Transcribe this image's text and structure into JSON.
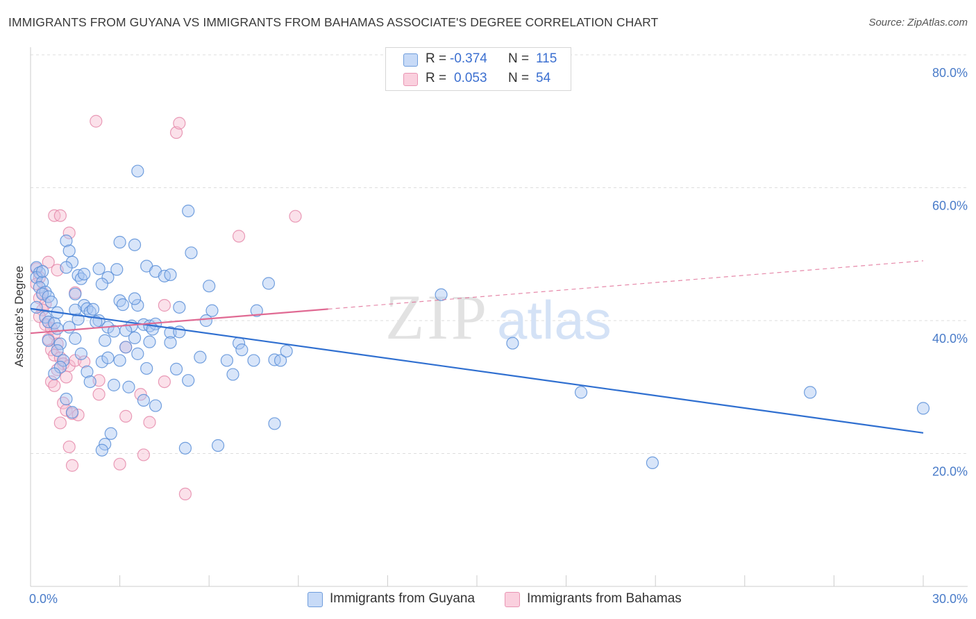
{
  "title": "IMMIGRANTS FROM GUYANA VS IMMIGRANTS FROM BAHAMAS ASSOCIATE'S DEGREE CORRELATION CHART",
  "source": "Source: ZipAtlas.com",
  "watermark": {
    "zip": "ZIP",
    "atlas": "atlas"
  },
  "colors": {
    "guyana_fill": "#a9c6f2",
    "guyana_stroke": "#5b8fd8",
    "guyana_line": "#2f6fd0",
    "bahamas_fill": "#f7bcd0",
    "bahamas_stroke": "#e58aaa",
    "bahamas_line": "#e06a93",
    "grid": "#dddddd",
    "tick_text": "#4a7cc9"
  },
  "legend_top": [
    {
      "series": "guyana",
      "r_label": "R =",
      "r_value": "-0.374",
      "n_label": "N =",
      "n_value": "115"
    },
    {
      "series": "bahamas",
      "r_label": "R =",
      "r_value": "0.053",
      "n_label": "N =",
      "n_value": "54"
    }
  ],
  "chart_data": {
    "type": "scatter",
    "title": "IMMIGRANTS FROM GUYANA VS IMMIGRANTS FROM BAHAMAS ASSOCIATE'S DEGREE CORRELATION CHART",
    "xlabel": "",
    "ylabel": "Associate's Degree",
    "xlim": [
      0,
      30
    ],
    "ylim": [
      0,
      80
    ],
    "x_tick_labels": [
      "0.0%",
      "30.0%"
    ],
    "y_ticks": [
      20,
      40,
      60,
      80
    ],
    "y_tick_labels": [
      "20.0%",
      "40.0%",
      "60.0%",
      "80.0%"
    ],
    "x_minor_ticks": [
      3,
      6,
      9,
      12,
      15,
      18,
      21,
      24,
      27,
      30
    ],
    "grid": true,
    "legend_position": "bottom",
    "series": [
      {
        "name": "Immigrants from Guyana",
        "key": "guyana",
        "R": -0.374,
        "N": 115,
        "trend": {
          "x": [
            0,
            30
          ],
          "y": [
            41.8,
            23.1
          ],
          "dashed_from": null
        },
        "points": [
          [
            0.2,
            48.0
          ],
          [
            0.3,
            47.2
          ],
          [
            0.2,
            46.5
          ],
          [
            0.4,
            45.8
          ],
          [
            0.3,
            45.0
          ],
          [
            0.5,
            44.3
          ],
          [
            0.4,
            44.0
          ],
          [
            0.6,
            43.6
          ],
          [
            0.7,
            42.8
          ],
          [
            0.2,
            42.0
          ],
          [
            0.5,
            40.5
          ],
          [
            0.6,
            39.8
          ],
          [
            0.8,
            39.6
          ],
          [
            0.9,
            38.8
          ],
          [
            0.6,
            37.0
          ],
          [
            1.0,
            36.5
          ],
          [
            0.9,
            35.5
          ],
          [
            1.1,
            34.0
          ],
          [
            1.0,
            33.0
          ],
          [
            0.8,
            32.0
          ],
          [
            1.2,
            52.0
          ],
          [
            1.3,
            50.5
          ],
          [
            1.4,
            48.8
          ],
          [
            1.2,
            48.0
          ],
          [
            1.6,
            46.8
          ],
          [
            1.7,
            46.3
          ],
          [
            1.5,
            44.0
          ],
          [
            1.8,
            42.3
          ],
          [
            1.9,
            41.8
          ],
          [
            2.0,
            41.3
          ],
          [
            1.6,
            40.2
          ],
          [
            2.3,
            40.0
          ],
          [
            2.2,
            39.8
          ],
          [
            2.6,
            39.0
          ],
          [
            2.8,
            38.4
          ],
          [
            1.5,
            37.3
          ],
          [
            2.5,
            37.0
          ],
          [
            2.4,
            33.8
          ],
          [
            1.9,
            32.3
          ],
          [
            2.0,
            30.8
          ],
          [
            1.2,
            28.2
          ],
          [
            1.4,
            26.2
          ],
          [
            2.7,
            23.0
          ],
          [
            2.5,
            21.4
          ],
          [
            2.4,
            20.5
          ],
          [
            2.3,
            47.8
          ],
          [
            2.6,
            46.5
          ],
          [
            2.4,
            45.5
          ],
          [
            3.0,
            51.8
          ],
          [
            3.5,
            51.4
          ],
          [
            3.0,
            43.0
          ],
          [
            3.6,
            42.3
          ],
          [
            3.5,
            43.3
          ],
          [
            3.9,
            48.2
          ],
          [
            4.2,
            47.4
          ],
          [
            4.5,
            46.7
          ],
          [
            4.7,
            46.9
          ],
          [
            3.4,
            39.2
          ],
          [
            3.8,
            39.4
          ],
          [
            4.0,
            39.2
          ],
          [
            4.2,
            39.5
          ],
          [
            3.2,
            38.5
          ],
          [
            4.1,
            38.7
          ],
          [
            4.7,
            38.2
          ],
          [
            5.0,
            38.3
          ],
          [
            3.2,
            36.0
          ],
          [
            3.5,
            37.4
          ],
          [
            4.0,
            36.8
          ],
          [
            3.6,
            35.0
          ],
          [
            3.0,
            34.0
          ],
          [
            3.9,
            32.8
          ],
          [
            3.8,
            28.0
          ],
          [
            4.2,
            27.2
          ],
          [
            2.6,
            34.4
          ],
          [
            2.8,
            30.3
          ],
          [
            3.3,
            30.0
          ],
          [
            3.6,
            62.5
          ],
          [
            5.3,
            56.5
          ],
          [
            5.4,
            50.2
          ],
          [
            4.7,
            36.7
          ],
          [
            5.0,
            42.0
          ],
          [
            6.0,
            45.2
          ],
          [
            6.1,
            41.5
          ],
          [
            5.9,
            40.0
          ],
          [
            5.7,
            34.5
          ],
          [
            5.3,
            31.0
          ],
          [
            4.9,
            32.7
          ],
          [
            5.2,
            20.8
          ],
          [
            6.6,
            34.0
          ],
          [
            6.3,
            21.2
          ],
          [
            7.0,
            36.6
          ],
          [
            7.1,
            35.6
          ],
          [
            6.8,
            31.9
          ],
          [
            7.5,
            34.0
          ],
          [
            7.6,
            41.5
          ],
          [
            8.0,
            45.6
          ],
          [
            8.2,
            34.1
          ],
          [
            8.4,
            34.0
          ],
          [
            8.6,
            35.4
          ],
          [
            8.2,
            24.5
          ],
          [
            13.8,
            43.9
          ],
          [
            16.2,
            36.6
          ],
          [
            18.5,
            29.2
          ],
          [
            20.9,
            18.6
          ],
          [
            26.2,
            29.2
          ],
          [
            30.0,
            26.8
          ],
          [
            0.4,
            47.4
          ],
          [
            1.8,
            47.0
          ],
          [
            2.9,
            47.7
          ],
          [
            0.9,
            41.2
          ],
          [
            1.5,
            41.6
          ],
          [
            3.1,
            42.4
          ],
          [
            2.1,
            41.7
          ],
          [
            1.3,
            39.0
          ],
          [
            1.7,
            35.0
          ]
        ]
      },
      {
        "name": "Immigrants from Bahamas",
        "key": "bahamas",
        "R": 0.053,
        "N": 54,
        "trend": {
          "x": [
            0,
            30
          ],
          "y": [
            38.1,
            49.0
          ],
          "dashed_from": 10
        },
        "points": [
          [
            0.2,
            47.8
          ],
          [
            0.3,
            46.5
          ],
          [
            0.2,
            45.5
          ],
          [
            0.4,
            44.2
          ],
          [
            0.3,
            43.4
          ],
          [
            0.5,
            42.5
          ],
          [
            0.4,
            41.6
          ],
          [
            0.3,
            40.6
          ],
          [
            0.6,
            39.8
          ],
          [
            0.5,
            39.4
          ],
          [
            0.7,
            38.8
          ],
          [
            0.8,
            38.0
          ],
          [
            0.6,
            37.2
          ],
          [
            0.9,
            36.5
          ],
          [
            0.7,
            35.6
          ],
          [
            0.8,
            34.8
          ],
          [
            1.0,
            34.4
          ],
          [
            1.1,
            33.5
          ],
          [
            1.3,
            33.2
          ],
          [
            0.9,
            32.6
          ],
          [
            1.2,
            31.5
          ],
          [
            0.7,
            30.8
          ],
          [
            0.8,
            30.2
          ],
          [
            1.1,
            27.6
          ],
          [
            1.2,
            26.5
          ],
          [
            1.4,
            26.0
          ],
          [
            1.6,
            25.8
          ],
          [
            1.0,
            24.6
          ],
          [
            1.3,
            21.0
          ],
          [
            1.4,
            18.2
          ],
          [
            0.8,
            55.8
          ],
          [
            1.0,
            55.8
          ],
          [
            1.3,
            53.2
          ],
          [
            0.6,
            48.8
          ],
          [
            0.9,
            47.6
          ],
          [
            1.5,
            44.2
          ],
          [
            2.2,
            70.0
          ],
          [
            4.9,
            68.3
          ],
          [
            5.0,
            69.7
          ],
          [
            7.0,
            52.7
          ],
          [
            8.9,
            55.7
          ],
          [
            4.5,
            42.3
          ],
          [
            3.2,
            25.6
          ],
          [
            3.7,
            28.9
          ],
          [
            4.0,
            24.7
          ],
          [
            3.8,
            19.8
          ],
          [
            3.0,
            18.4
          ],
          [
            5.2,
            13.9
          ],
          [
            4.5,
            30.8
          ],
          [
            2.3,
            31.0
          ],
          [
            2.3,
            28.9
          ],
          [
            1.5,
            34.0
          ],
          [
            1.8,
            33.8
          ],
          [
            3.2,
            36.0
          ]
        ]
      }
    ]
  }
}
